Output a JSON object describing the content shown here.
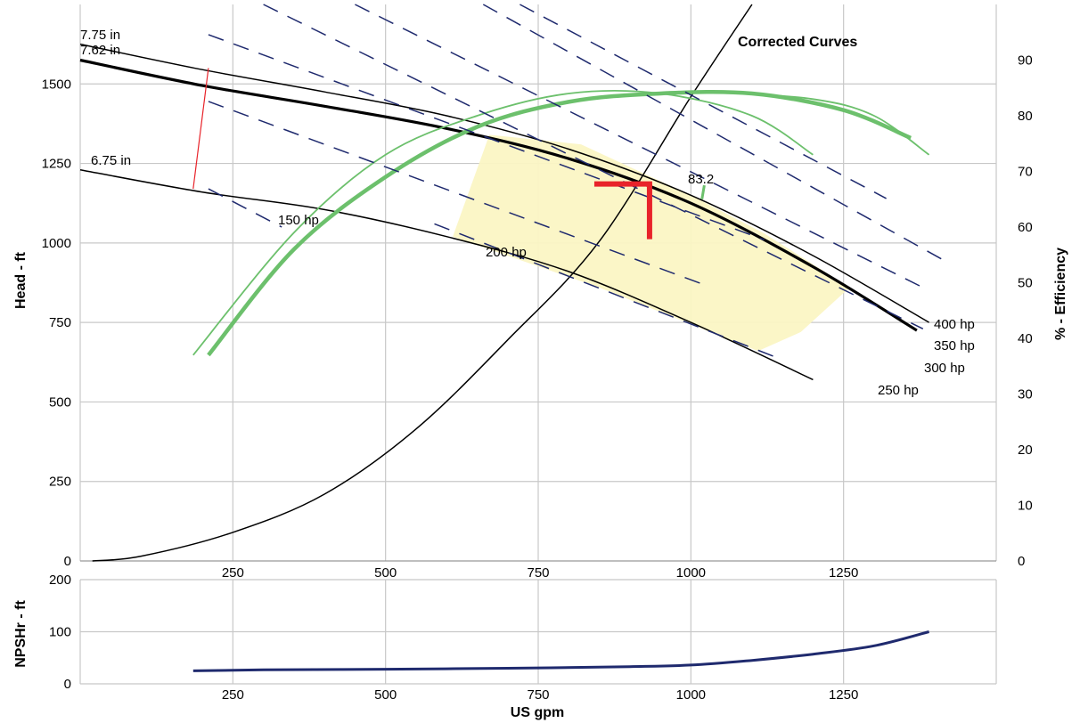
{
  "chart_data": [
    {
      "type": "line",
      "xlabel": "",
      "ylabel": "Head - ft",
      "y2label": "% - Efficiency",
      "xlim": [
        0,
        1500
      ],
      "ylim": [
        0,
        1750
      ],
      "y2lim": [
        0,
        100
      ],
      "x_ticks": [
        "250",
        "500",
        "750",
        "1000",
        "1250"
      ],
      "y_ticks": [
        "0",
        "250",
        "500",
        "750",
        "1000",
        "1250",
        "1500"
      ],
      "y2_ticks": [
        "0",
        "10",
        "20",
        "30",
        "40",
        "50",
        "60",
        "70",
        "80",
        "90"
      ],
      "grid": true,
      "annotations": {
        "corrected_curves": "Corrected Curves",
        "efficiency_point": "83.2",
        "duty_point": {
          "x": 925,
          "y": 1180
        }
      },
      "preferred_region": [
        {
          "x": 610,
          "y": 1020
        },
        {
          "x": 670,
          "y": 1340
        },
        {
          "x": 820,
          "y": 1310
        },
        {
          "x": 1000,
          "y": 1150
        },
        {
          "x": 1120,
          "y": 1030
        },
        {
          "x": 1260,
          "y": 860
        },
        {
          "x": 1180,
          "y": 720
        },
        {
          "x": 1110,
          "y": 660
        },
        {
          "x": 850,
          "y": 860
        }
      ],
      "series": [
        {
          "name": "7.75 in",
          "role": "head",
          "x": [
            0,
            200,
            400,
            600,
            800,
            1000,
            1200,
            1390
          ],
          "y": [
            1625,
            1545,
            1475,
            1400,
            1295,
            1150,
            960,
            750
          ]
        },
        {
          "name": "7.62 in",
          "role": "head-main",
          "x": [
            0,
            200,
            400,
            600,
            800,
            1000,
            1200,
            1370
          ],
          "y": [
            1575,
            1495,
            1430,
            1360,
            1265,
            1125,
            925,
            725
          ]
        },
        {
          "name": "6.75 in",
          "role": "head",
          "x": [
            0,
            200,
            400,
            600,
            800,
            1000,
            1200
          ],
          "y": [
            1230,
            1160,
            1105,
            1020,
            910,
            750,
            570
          ]
        },
        {
          "name": "",
          "role": "system",
          "x": [
            20,
            100,
            250,
            400,
            550,
            700,
            850,
            1000,
            1100
          ],
          "y": [
            0,
            15,
            90,
            210,
            415,
            695,
            1005,
            1460,
            1750
          ]
        },
        {
          "name": "",
          "role": "min-dia-line",
          "x": [
            185,
            210
          ],
          "y": [
            1170,
            1550
          ]
        },
        {
          "name": "",
          "role": "efficiency-main",
          "axis": "y2",
          "x": [
            210,
            350,
            500,
            650,
            800,
            950,
            1100,
            1250,
            1360
          ],
          "y": [
            37,
            56,
            69,
            78,
            82.5,
            84,
            84,
            81,
            76
          ]
        },
        {
          "name": "",
          "role": "efficiency",
          "x": [
            185,
            350,
            500,
            650,
            800,
            950,
            1100,
            1200
          ],
          "y": [
            37,
            59,
            73,
            80,
            84,
            84,
            80,
            73
          ]
        },
        {
          "name": "",
          "role": "efficiency",
          "x": [
            1050,
            1200,
            1300,
            1390
          ],
          "y": [
            84.2,
            83,
            80,
            73
          ]
        },
        {
          "name": "",
          "role": "efficiency-marker",
          "axis": "y2",
          "x": [
            1018,
            1022
          ],
          "y": [
            65,
            67.5
          ]
        },
        {
          "name": "150 hp",
          "role": "power",
          "x": [
            210,
            330
          ],
          "y": [
            1170,
            1050
          ]
        },
        {
          "name": "150 hp",
          "role": "power",
          "x": [
            210,
            1020
          ],
          "y": [
            1445,
            870
          ]
        },
        {
          "name": "200 hp",
          "role": "power",
          "x": [
            210,
            1120
          ],
          "y": [
            1655,
            1010
          ]
        },
        {
          "name": "200 hp",
          "role": "power",
          "x": [
            580,
            1140
          ],
          "y": [
            1060,
            640
          ]
        },
        {
          "name": "250 hp",
          "role": "power",
          "x": [
            300,
            1380
          ],
          "y": [
            1750,
            730
          ]
        },
        {
          "name": "300 hp",
          "role": "power",
          "x": [
            450,
            1380
          ],
          "y": [
            1750,
            860
          ]
        },
        {
          "name": "350 hp",
          "role": "power",
          "x": [
            660,
            1410
          ],
          "y": [
            1750,
            950
          ]
        },
        {
          "name": "400 hp",
          "role": "power",
          "x": [
            720,
            1320
          ],
          "y": [
            1750,
            1140
          ]
        }
      ],
      "labels": {
        "d775": "7.75 in",
        "d762": "7.62 in",
        "d675": "6.75 in",
        "hp150": "150 hp",
        "hp200": "200 hp",
        "hp250": "250 hp",
        "hp300": "300 hp",
        "hp350": "350 hp",
        "hp400": "400 hp"
      }
    },
    {
      "type": "line",
      "xlabel": "US gpm",
      "ylabel": "NPSHr - ft",
      "xlim": [
        0,
        1500
      ],
      "ylim": [
        0,
        200
      ],
      "x_ticks": [
        "250",
        "500",
        "750",
        "1000",
        "1250"
      ],
      "y_ticks": [
        "0",
        "100",
        "200"
      ],
      "grid": true,
      "series": [
        {
          "name": "",
          "role": "npsh",
          "x": [
            185,
            300,
            500,
            700,
            900,
            1000,
            1100,
            1200,
            1300,
            1390
          ],
          "y": [
            25,
            27,
            28,
            30,
            33,
            36,
            45,
            57,
            73,
            100
          ]
        }
      ]
    }
  ],
  "colors": {
    "grid": "#c8c8c8",
    "head": "#000000",
    "efficiency": "#6cc06c",
    "power": "#1f2a6e",
    "npsh": "#1f2a6e",
    "region": "#fbf6c4",
    "duty": "#e8232a",
    "min_dia": "#e8232a"
  }
}
